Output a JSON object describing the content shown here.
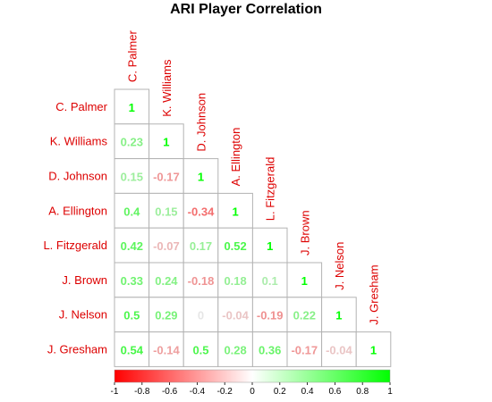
{
  "title": "ARI Player Correlation",
  "colors": {
    "negative": "#ff0000",
    "mid": "#e6e6e6",
    "positive": "#00ff00",
    "labels": "#dd0000"
  },
  "chart_data": {
    "type": "heatmap",
    "title": "ARI Player Correlation",
    "layout": "lower-triangle",
    "players": [
      "C. Palmer",
      "K. Williams",
      "D. Johnson",
      "A. Ellington",
      "L. Fitzgerald",
      "J. Brown",
      "J. Nelson",
      "J. Gresham"
    ],
    "matrix": [
      [
        "1"
      ],
      [
        "0.23",
        "1"
      ],
      [
        "0.15",
        "-0.17",
        "1"
      ],
      [
        "0.4",
        "0.15",
        "-0.34",
        "1"
      ],
      [
        "0.42",
        "-0.07",
        "0.17",
        "0.52",
        "1"
      ],
      [
        "0.33",
        "0.24",
        "-0.18",
        "0.18",
        "0.1",
        "1"
      ],
      [
        "0.5",
        "0.29",
        "0",
        "-0.04",
        "-0.19",
        "0.22",
        "1"
      ],
      [
        "0.54",
        "-0.14",
        "0.5",
        "0.28",
        "0.36",
        "-0.17",
        "-0.04",
        "1"
      ]
    ],
    "color_scale": {
      "range": [
        -1,
        1
      ],
      "ticks": [
        "-1",
        "-0.8",
        "-0.6",
        "-0.4",
        "-0.2",
        "0",
        "0.2",
        "0.4",
        "0.6",
        "0.8",
        "1"
      ]
    }
  }
}
